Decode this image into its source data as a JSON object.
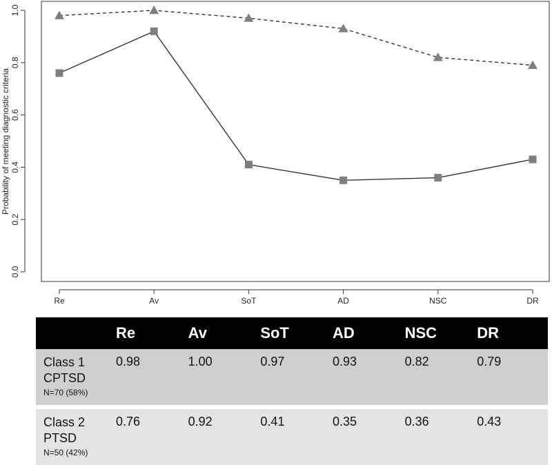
{
  "chart_data": {
    "type": "line",
    "categories": [
      "Re",
      "Av",
      "SoT",
      "AD",
      "NSC",
      "DR"
    ],
    "ylabel": "Probability of meeting diagnostic criteria",
    "xlabel": "",
    "ylim": [
      0,
      1.0
    ],
    "yticks": [
      "0.0",
      "0.2",
      "0.4",
      "0.6",
      "0.8",
      "1.0"
    ],
    "series": [
      {
        "values": [
          0.98,
          1.0,
          0.97,
          0.93,
          0.82,
          0.79
        ],
        "line": "dashed",
        "marker": "triangle",
        "color": "#7f7f7f"
      },
      {
        "values": [
          0.76,
          0.92,
          0.41,
          0.35,
          0.36,
          0.43
        ],
        "line": "solid",
        "marker": "square",
        "color": "#7f7f7f"
      }
    ]
  },
  "table": {
    "columns": [
      "Re",
      "Av",
      "SoT",
      "AD",
      "NSC",
      "DR"
    ],
    "rows": [
      {
        "class_label": "Class 1",
        "class_type": "CPTSD",
        "n": "N=70 (58%)",
        "values": [
          "0.98",
          "1.00",
          "0.97",
          "0.93",
          "0.82",
          "0.79"
        ]
      },
      {
        "class_label": "Class 2",
        "class_type": "PTSD",
        "n": "N=50 (42%)",
        "values": [
          "0.76",
          "0.92",
          "0.41",
          "0.35",
          "0.36",
          "0.43"
        ]
      }
    ]
  },
  "colors": {
    "marker": "#7f7f7f",
    "line": "#333333",
    "header_bg": "#000000",
    "row1_bg": "#cfcfcf",
    "row2_bg": "#e4e4e4"
  }
}
